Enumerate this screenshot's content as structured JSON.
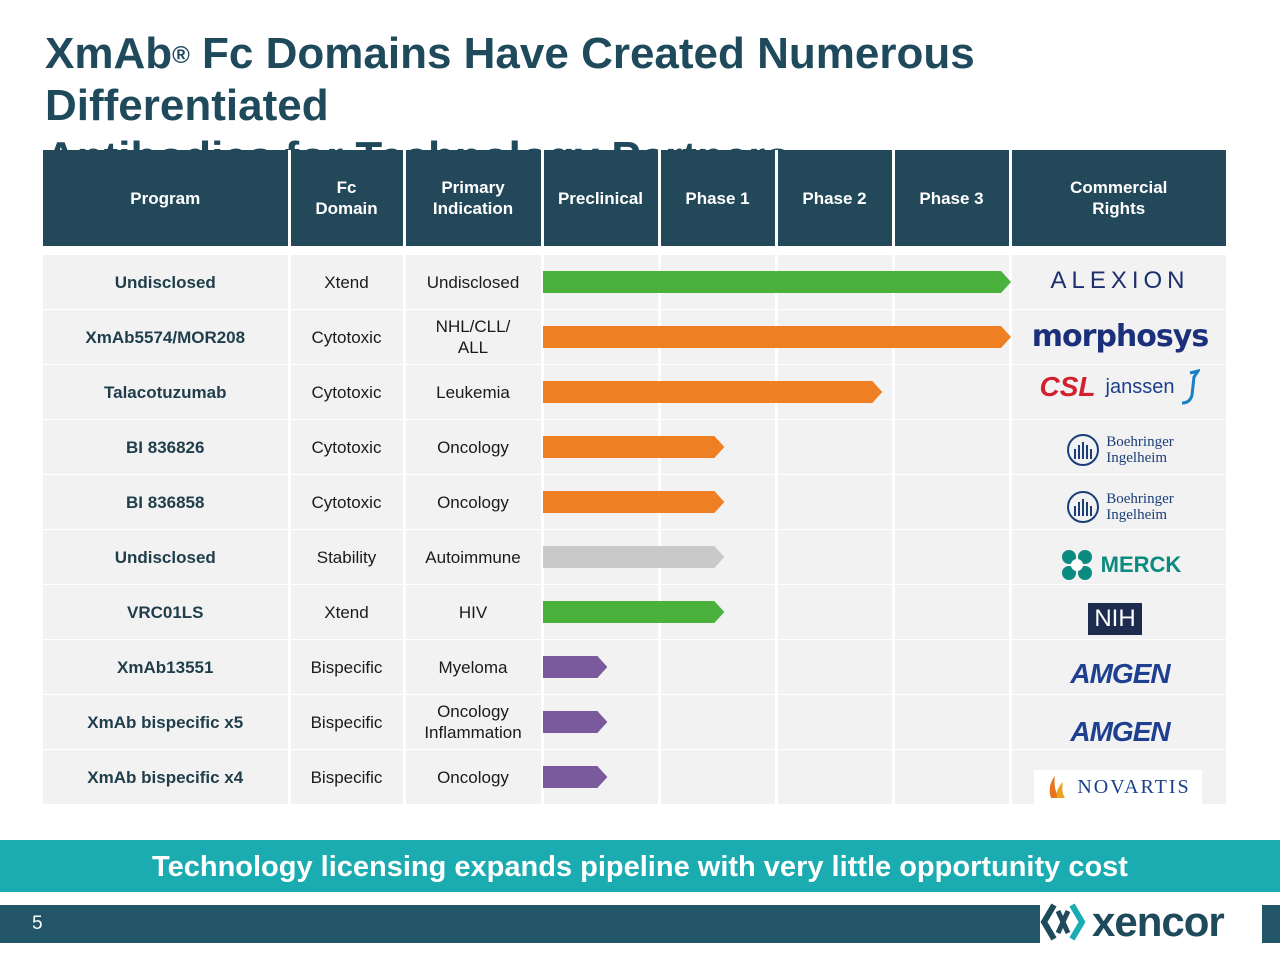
{
  "title": {
    "brand": "XmAb",
    "reg": "®",
    "line1_rest": " Fc Domains Have Created Numerous Differentiated",
    "line2": "Antibodies for Technology Partners"
  },
  "table": {
    "headers": [
      "Program",
      "Fc Domain",
      "Primary Indication",
      "Preclinical",
      "Phase 1",
      "Phase 2",
      "Phase 3",
      "Commercial Rights"
    ],
    "rows": [
      {
        "program": "Undisclosed",
        "fc_domain": "Xtend",
        "indication": "Undisclosed",
        "stage": 4.0,
        "color": "#4ab13d",
        "partner": "ALEXION"
      },
      {
        "program": "XmAb5574/MOR208",
        "fc_domain": "Cytotoxic",
        "indication": "NHL/CLL/ ALL",
        "stage": 4.0,
        "color": "#ee7f22",
        "partner": "morphosys"
      },
      {
        "program": "Talacotuzumab",
        "fc_domain": "Cytotoxic",
        "indication": "Leukemia",
        "stage": 2.9,
        "color": "#ee7f22",
        "partner": "CSL janssen"
      },
      {
        "program": "BI 836826",
        "fc_domain": "Cytotoxic",
        "indication": "Oncology",
        "stage": 1.55,
        "color": "#ee7f22",
        "partner": "Boehringer Ingelheim"
      },
      {
        "program": "BI 836858",
        "fc_domain": "Cytotoxic",
        "indication": "Oncology",
        "stage": 1.55,
        "color": "#ee7f22",
        "partner": "Boehringer Ingelheim"
      },
      {
        "program": "Undisclosed",
        "fc_domain": "Stability",
        "indication": "Autoimmune",
        "stage": 1.55,
        "color": "#c9c9c9",
        "partner": "MERCK"
      },
      {
        "program": "VRC01LS",
        "fc_domain": "Xtend",
        "indication": "HIV",
        "stage": 1.55,
        "color": "#4ab13d",
        "partner": "NIH"
      },
      {
        "program": "XmAb13551",
        "fc_domain": "Bispecific",
        "indication": "Myeloma",
        "stage": 0.55,
        "color": "#7a5a9c",
        "partner": "AMGEN"
      },
      {
        "program": "XmAb bispecific x5",
        "fc_domain": "Bispecific",
        "indication": "Oncology Inflammation",
        "stage": 0.55,
        "color": "#7a5a9c",
        "partner": "AMGEN"
      },
      {
        "program": "XmAb bispecific x4",
        "fc_domain": "Bispecific",
        "indication": "Oncology",
        "stage": 0.55,
        "color": "#7a5a9c",
        "partner": "NOVARTIS"
      }
    ]
  },
  "logos": {
    "alexion": "ALEXION",
    "morphosys": "morphosys",
    "csl": "CSL",
    "janssen": "janssen",
    "bi_line1": "Boehringer",
    "bi_line2": "Ingelheim",
    "merck": "MERCK",
    "nih": "NIH",
    "amgen": "AMGEN",
    "novartis": "NOVARTIS"
  },
  "banner": "Technology licensing expands pipeline with very little opportunity cost",
  "footer": {
    "page_number": "5",
    "brand": "xencor"
  }
}
